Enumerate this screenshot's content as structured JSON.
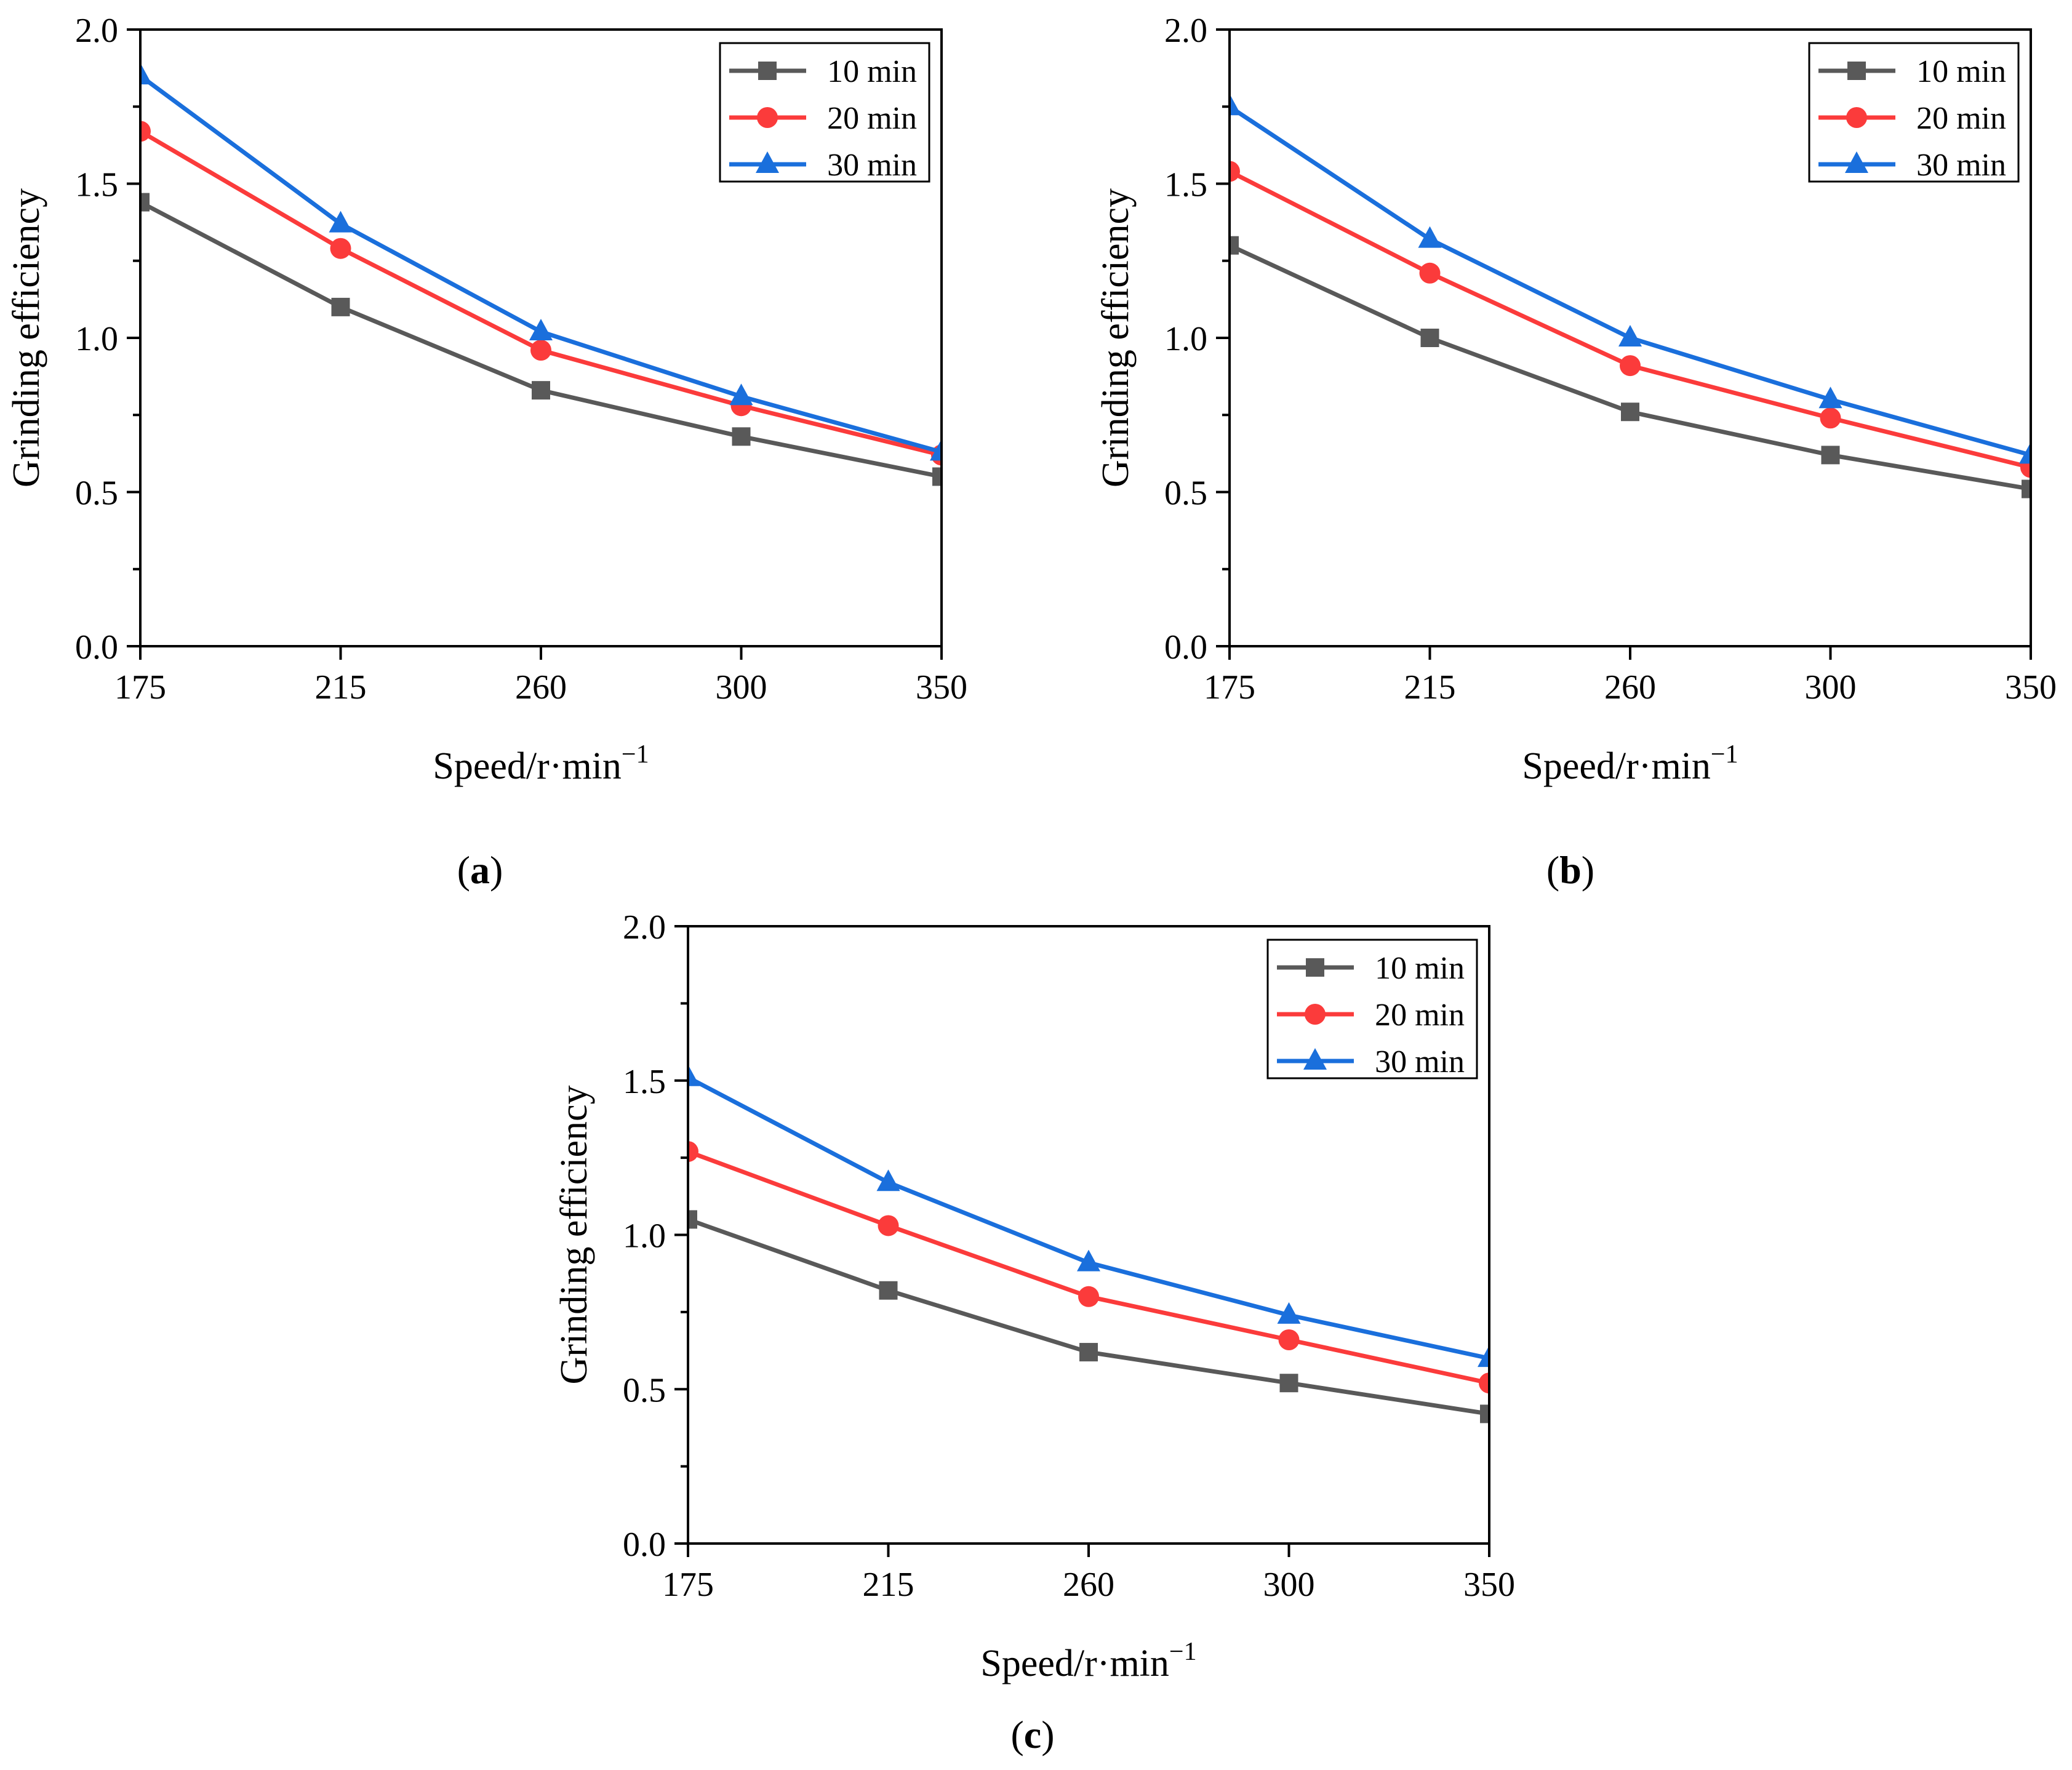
{
  "chart_data": [
    {
      "type": "line",
      "panel_label": "a",
      "x": [
        175,
        215,
        260,
        300,
        350
      ],
      "xlabel": "Speed/r·min",
      "xlabel_sup": "−1",
      "ylabel": "Grinding efficiency",
      "ylim": [
        0.0,
        2.0
      ],
      "yticks": [
        "0.0",
        "0.5",
        "1.0",
        "1.5",
        "2.0"
      ],
      "xticks": [
        "175",
        "215",
        "260",
        "300",
        "350"
      ],
      "legend_position": "top-right",
      "grid": false,
      "series": [
        {
          "name": "10 min",
          "color": "#595959",
          "marker": "square",
          "values": [
            1.44,
            1.1,
            0.83,
            0.68,
            0.55
          ]
        },
        {
          "name": "20 min",
          "color": "#fb3b3b",
          "marker": "circle",
          "values": [
            1.67,
            1.29,
            0.96,
            0.78,
            0.62
          ]
        },
        {
          "name": "30 min",
          "color": "#1a6fdc",
          "marker": "triangle",
          "values": [
            1.85,
            1.37,
            1.02,
            0.81,
            0.63
          ]
        }
      ]
    },
    {
      "type": "line",
      "panel_label": "b",
      "x": [
        175,
        215,
        260,
        300,
        350
      ],
      "xlabel": "Speed/r·min",
      "xlabel_sup": "−1",
      "ylabel": "Grinding efficiency",
      "ylim": [
        0.0,
        2.0
      ],
      "yticks": [
        "0.0",
        "0.5",
        "1.0",
        "1.5",
        "2.0"
      ],
      "xticks": [
        "175",
        "215",
        "260",
        "300",
        "350"
      ],
      "legend_position": "top-right",
      "grid": false,
      "series": [
        {
          "name": "10 min",
          "color": "#595959",
          "marker": "square",
          "values": [
            1.3,
            1.0,
            0.76,
            0.62,
            0.51
          ]
        },
        {
          "name": "20 min",
          "color": "#fb3b3b",
          "marker": "circle",
          "values": [
            1.54,
            1.21,
            0.91,
            0.74,
            0.58
          ]
        },
        {
          "name": "30 min",
          "color": "#1a6fdc",
          "marker": "triangle",
          "values": [
            1.75,
            1.32,
            1.0,
            0.8,
            0.62
          ]
        }
      ]
    },
    {
      "type": "line",
      "panel_label": "c",
      "x": [
        175,
        215,
        260,
        300,
        350
      ],
      "xlabel": "Speed/r·min",
      "xlabel_sup": "−1",
      "ylabel": "Grinding efficiency",
      "ylim": [
        0.0,
        2.0
      ],
      "yticks": [
        "0.0",
        "0.5",
        "1.0",
        "1.5",
        "2.0"
      ],
      "xticks": [
        "175",
        "215",
        "260",
        "300",
        "350"
      ],
      "legend_position": "top-right",
      "grid": false,
      "series": [
        {
          "name": "10 min",
          "color": "#595959",
          "marker": "square",
          "values": [
            1.05,
            0.82,
            0.62,
            0.52,
            0.42
          ]
        },
        {
          "name": "20 min",
          "color": "#fb3b3b",
          "marker": "circle",
          "values": [
            1.27,
            1.03,
            0.8,
            0.66,
            0.52
          ]
        },
        {
          "name": "30 min",
          "color": "#1a6fdc",
          "marker": "triangle",
          "values": [
            1.51,
            1.17,
            0.91,
            0.74,
            0.6
          ]
        }
      ]
    }
  ]
}
